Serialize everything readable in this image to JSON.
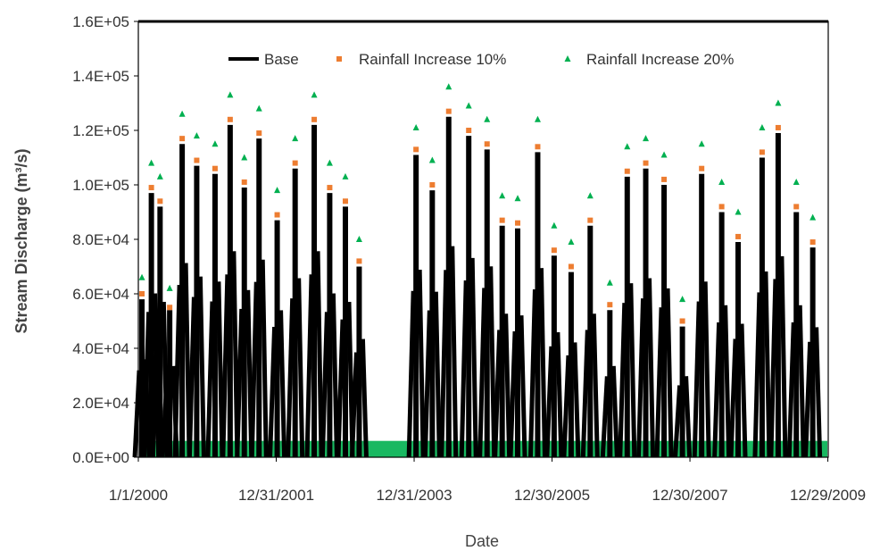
{
  "chart_data": {
    "type": "line",
    "xlabel": "Date",
    "ylabel": "Stream Discharge (m³/s)",
    "ylim": [
      0,
      160000
    ],
    "y_ticks": [
      0,
      20000,
      40000,
      60000,
      80000,
      100000,
      120000,
      140000,
      160000
    ],
    "y_tick_labels": [
      "0.0E+00",
      "2.0E+04",
      "4.0E+04",
      "6.0E+04",
      "8.0E+04",
      "1.0E+05",
      "1.2E+05",
      "1.4E+05",
      "1.6E+05"
    ],
    "xlim": [
      "2000-01-01",
      "2009-12-31"
    ],
    "x_ticks": [
      "2000-01-01",
      "2001-12-31",
      "2003-12-31",
      "2005-12-30",
      "2007-12-30",
      "2009-12-29"
    ],
    "x_tick_labels": [
      "1/1/2000",
      "12/31/2001",
      "12/31/2003",
      "12/30/2005",
      "12/30/2007",
      "12/29/2009"
    ],
    "grid": false,
    "legend_position": "top",
    "series": [
      {
        "name": "Base",
        "style": "line",
        "color": "#000000",
        "x": [
          "2000-01-20",
          "2000-03-10",
          "2000-04-25",
          "2000-06-15",
          "2000-08-20",
          "2000-11-05",
          "2001-02-10",
          "2001-05-01",
          "2001-07-15",
          "2001-10-01",
          "2002-01-05",
          "2002-04-10",
          "2002-07-20",
          "2002-10-10",
          "2003-01-01",
          "2003-03-15",
          "2004-01-10",
          "2004-04-05",
          "2004-07-01",
          "2004-10-15",
          "2005-01-20",
          "2005-04-10",
          "2005-07-01",
          "2005-10-15",
          "2006-01-10",
          "2006-04-10",
          "2006-07-20",
          "2006-11-01",
          "2007-02-01",
          "2007-05-10",
          "2007-08-15",
          "2007-11-20",
          "2008-03-01",
          "2008-06-15",
          "2008-09-10",
          "2009-01-15",
          "2009-04-10",
          "2009-07-15",
          "2009-10-10"
        ],
        "y": [
          58000,
          97000,
          92000,
          54000,
          115000,
          107000,
          104000,
          122000,
          99000,
          117000,
          87000,
          106000,
          122000,
          97000,
          92000,
          70000,
          111000,
          98000,
          125000,
          118000,
          113000,
          85000,
          84000,
          112000,
          74000,
          68000,
          85000,
          54000,
          103000,
          106000,
          100000,
          48000,
          104000,
          90000,
          79000,
          110000,
          119000,
          90000,
          77000
        ]
      },
      {
        "name": "Rainfall Increase 10%",
        "style": "markers",
        "marker": "square",
        "color": "#ED7D31",
        "x": [
          "2000-01-20",
          "2000-03-10",
          "2000-04-25",
          "2000-06-15",
          "2000-08-20",
          "2000-11-05",
          "2001-02-10",
          "2001-05-01",
          "2001-07-15",
          "2001-10-01",
          "2002-01-05",
          "2002-04-10",
          "2002-07-20",
          "2002-10-10",
          "2003-01-01",
          "2003-03-15",
          "2004-01-10",
          "2004-04-05",
          "2004-07-01",
          "2004-10-15",
          "2005-01-20",
          "2005-04-10",
          "2005-07-01",
          "2005-10-15",
          "2006-01-10",
          "2006-04-10",
          "2006-07-20",
          "2006-11-01",
          "2007-02-01",
          "2007-05-10",
          "2007-08-15",
          "2007-11-20",
          "2008-03-01",
          "2008-06-15",
          "2008-09-10",
          "2009-01-15",
          "2009-04-10",
          "2009-07-15",
          "2009-10-10"
        ],
        "y": [
          60000,
          99000,
          94000,
          55000,
          117000,
          109000,
          106000,
          124000,
          101000,
          119000,
          89000,
          108000,
          124000,
          99000,
          94000,
          72000,
          113000,
          100000,
          127000,
          120000,
          115000,
          87000,
          86000,
          114000,
          76000,
          70000,
          87000,
          56000,
          105000,
          108000,
          102000,
          50000,
          106000,
          92000,
          81000,
          112000,
          121000,
          92000,
          79000
        ]
      },
      {
        "name": "Rainfall Increase 20%",
        "style": "markers",
        "marker": "triangle",
        "color": "#00B050",
        "x": [
          "2000-01-20",
          "2000-03-10",
          "2000-04-25",
          "2000-06-15",
          "2000-08-20",
          "2000-11-05",
          "2001-02-10",
          "2001-05-01",
          "2001-07-15",
          "2001-10-01",
          "2002-01-05",
          "2002-04-10",
          "2002-07-20",
          "2002-10-10",
          "2003-01-01",
          "2003-03-15",
          "2004-01-10",
          "2004-04-05",
          "2004-07-01",
          "2004-10-15",
          "2005-01-20",
          "2005-04-10",
          "2005-07-01",
          "2005-10-15",
          "2006-01-10",
          "2006-04-10",
          "2006-07-20",
          "2006-11-01",
          "2007-02-01",
          "2007-05-10",
          "2007-08-15",
          "2007-11-20",
          "2008-03-01",
          "2008-06-15",
          "2008-09-10",
          "2009-01-15",
          "2009-04-10",
          "2009-07-15",
          "2009-10-10"
        ],
        "y": [
          66000,
          108000,
          103000,
          62000,
          126000,
          118000,
          115000,
          133000,
          110000,
          128000,
          98000,
          117000,
          133000,
          108000,
          103000,
          80000,
          121000,
          109000,
          136000,
          129000,
          124000,
          96000,
          95000,
          124000,
          85000,
          79000,
          96000,
          64000,
          114000,
          117000,
          111000,
          58000,
          115000,
          101000,
          90000,
          121000,
          130000,
          101000,
          88000
        ]
      }
    ]
  }
}
